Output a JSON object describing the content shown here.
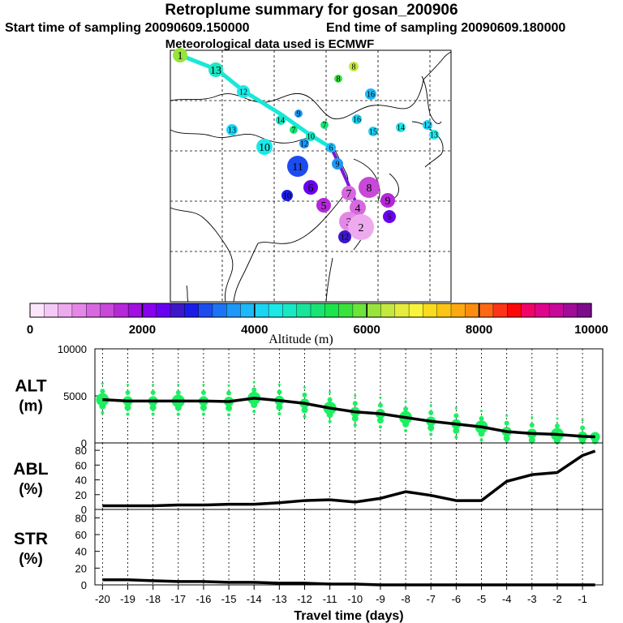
{
  "header": {
    "title": "Retroplume summary for gosan_200906",
    "start_label": "Start time of sampling 20090609.150000",
    "end_label": "End time of sampling 20090609.180000",
    "met_label": "Meteorological data used is ECMWF"
  },
  "colors": {
    "palette": [
      "#fbe6fb",
      "#f5c8f5",
      "#eeaaee",
      "#e488e8",
      "#d868e0",
      "#c848d8",
      "#b428d8",
      "#a010e0",
      "#8800ee",
      "#6a00f0",
      "#3c18c8",
      "#1c1ce8",
      "#1c4cf0",
      "#1c74f4",
      "#1c98f8",
      "#1cb8f8",
      "#1cd4f4",
      "#1ce8e8",
      "#18e8c4",
      "#18e49c",
      "#18e474",
      "#1ce44c",
      "#38e43c",
      "#6ce43c",
      "#98e43c",
      "#c4e840",
      "#e4ec3c",
      "#f8f43c",
      "#f8dc20",
      "#fcc414",
      "#fca810",
      "#fc8c10",
      "#fc6814",
      "#fc3418",
      "#fc0808",
      "#f00468",
      "#e0048c",
      "#c80898",
      "#a00c98",
      "#7c0c8c"
    ],
    "scatter_green": "#1cf060",
    "trajectory_purple": "#7a18d8",
    "trajectory_cyan": "#18e8d8"
  },
  "map_labels": [
    {
      "t": "1",
      "c": 24
    },
    {
      "t": "13",
      "c": 18
    },
    {
      "t": "12",
      "c": 17
    },
    {
      "t": "8",
      "c": 25
    },
    {
      "t": "8",
      "c": 22
    },
    {
      "t": "16",
      "c": 15
    },
    {
      "t": "9",
      "c": 14
    },
    {
      "t": "14",
      "c": 18
    },
    {
      "t": "7",
      "c": 20
    },
    {
      "t": "16",
      "c": 16
    },
    {
      "t": "15",
      "c": 16
    },
    {
      "t": "14",
      "c": 17
    },
    {
      "t": "13",
      "c": 16
    },
    {
      "t": "12",
      "c": 16
    },
    {
      "t": "10",
      "c": 17
    },
    {
      "t": "13",
      "c": 17
    },
    {
      "t": "7",
      "c": 20
    },
    {
      "t": "10",
      "c": 18
    },
    {
      "t": "12",
      "c": 14
    },
    {
      "t": "6",
      "c": 15
    },
    {
      "t": "9",
      "c": 14
    },
    {
      "t": "11",
      "c": 12
    },
    {
      "t": "10",
      "c": 11
    },
    {
      "t": "6",
      "c": 9
    },
    {
      "t": "5",
      "c": 6
    },
    {
      "t": "7",
      "c": 4
    },
    {
      "t": "8",
      "c": 5
    },
    {
      "t": "9",
      "c": 6
    },
    {
      "t": "4",
      "c": 4
    },
    {
      "t": "3",
      "c": 3
    },
    {
      "t": "2",
      "c": 2
    },
    {
      "t": "12",
      "c": 10
    },
    {
      "t": "5",
      "c": 9
    }
  ],
  "colorbar": {
    "ticks": [
      "0",
      "2000",
      "4000",
      "6000",
      "8000",
      "10000"
    ],
    "label": "Altitude (m)"
  },
  "chart_data": [
    {
      "type": "line",
      "name": "ALT",
      "ylabel_line1": "ALT",
      "ylabel_line2": "(m)",
      "ylim": [
        0,
        10000
      ],
      "yticks": [
        "0",
        "5000",
        "10000"
      ],
      "x": [
        -20,
        -19,
        -18,
        -17,
        -16,
        -15,
        -14,
        -13,
        -12,
        -11,
        -10,
        -9,
        -8,
        -7,
        -6,
        -5,
        -4,
        -3,
        -2,
        -1,
        -0.5
      ],
      "values": [
        4600,
        4450,
        4450,
        4450,
        4450,
        4400,
        4750,
        4500,
        4200,
        3700,
        3300,
        3100,
        2700,
        2300,
        2000,
        1700,
        1200,
        1000,
        900,
        700,
        650
      ]
    },
    {
      "type": "line",
      "name": "ABL",
      "ylabel_line1": "ABL",
      "ylabel_line2": "(%)",
      "ylim": [
        0,
        90
      ],
      "yticks": [
        "0",
        "20",
        "40",
        "60",
        "80"
      ],
      "x": [
        -20,
        -19,
        -18,
        -17,
        -16,
        -15,
        -14,
        -13,
        -12,
        -11,
        -10,
        -9,
        -8,
        -7,
        -6,
        -5,
        -4,
        -3,
        -2,
        -1,
        -0.5
      ],
      "values": [
        5,
        5,
        5,
        6,
        6,
        7,
        7,
        9,
        12,
        13,
        10,
        15,
        24,
        19,
        12,
        12,
        38,
        47,
        50,
        73,
        79
      ]
    },
    {
      "type": "line",
      "name": "STR",
      "ylabel_line1": "STR",
      "ylabel_line2": "(%)",
      "ylim": [
        0,
        90
      ],
      "yticks": [
        "0",
        "20",
        "40",
        "60",
        "80"
      ],
      "x": [
        -20,
        -19,
        -18,
        -17,
        -16,
        -15,
        -14,
        -13,
        -12,
        -11,
        -10,
        -9,
        -8,
        -7,
        -6,
        -5,
        -4,
        -3,
        -2,
        -1,
        -0.5
      ],
      "values": [
        6,
        6,
        5,
        4,
        4,
        3,
        3,
        2,
        2,
        1,
        1,
        0,
        0,
        0,
        0,
        0,
        0,
        0,
        0,
        0,
        0
      ]
    }
  ],
  "xaxis": {
    "ticks": [
      "-20",
      "-19",
      "-18",
      "-17",
      "-16",
      "-15",
      "-14",
      "-13",
      "-12",
      "-11",
      "-10",
      "-9",
      "-8",
      "-7",
      "-6",
      "-5",
      "-4",
      "-3",
      "-2",
      "-1"
    ],
    "label": "Travel time (days)"
  }
}
